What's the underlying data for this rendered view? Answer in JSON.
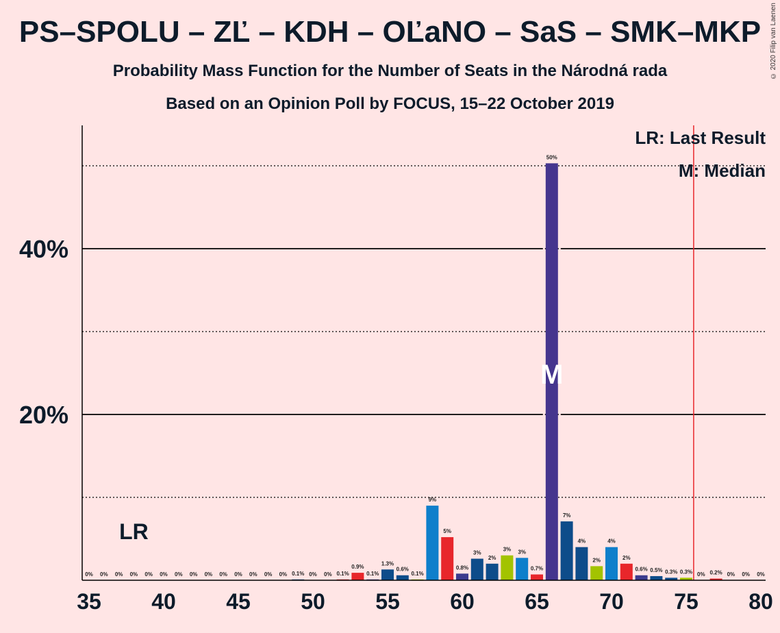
{
  "title": "PS–SPOLU – ZĽ – KDH – OĽaNO – SaS – SMK–MKP",
  "subtitle": "Probability Mass Function for the Number of Seats in the Národná rada",
  "subtitle2": "Based on an Opinion Poll by FOCUS, 15–22 October 2019",
  "copyright": "© 2020 Filip van Laenen",
  "legend": {
    "last_result": "LR: Last Result",
    "median": "M: Median"
  },
  "chart_data": {
    "type": "bar",
    "xlim": [
      35,
      80
    ],
    "ylim": [
      0,
      55
    ],
    "x_ticks": [
      35,
      40,
      45,
      50,
      55,
      60,
      65,
      70,
      75,
      80
    ],
    "y_ticks": [
      {
        "value": 20,
        "label": "20%"
      },
      {
        "value": 40,
        "label": "40%"
      }
    ],
    "y_dotted": [
      10,
      30,
      50
    ],
    "last_result_seat": 38,
    "last_result_label": "LR",
    "majority_line": 75.5,
    "median_seat": 66,
    "median_label": "M",
    "bars": [
      {
        "x": 35,
        "value": 0,
        "label": "0%",
        "color": "#1F77B4"
      },
      {
        "x": 36,
        "value": 0,
        "label": "0%",
        "color": "#E8262B"
      },
      {
        "x": 37,
        "value": 0,
        "label": "0%",
        "color": "#3C3B8E"
      },
      {
        "x": 38,
        "value": 0,
        "label": "0%",
        "color": "#0E4C8A"
      },
      {
        "x": 39,
        "value": 0,
        "label": "0%",
        "color": "#0E4C8A"
      },
      {
        "x": 40,
        "value": 0,
        "label": "0%",
        "color": "#A3C300"
      },
      {
        "x": 41,
        "value": 0,
        "label": "0%",
        "color": "#0E4C8A"
      },
      {
        "x": 42,
        "value": 0,
        "label": "0%",
        "color": "#0E4C8A"
      },
      {
        "x": 43,
        "value": 0,
        "label": "0%",
        "color": "#1F77B4"
      },
      {
        "x": 44,
        "value": 0,
        "label": "0%",
        "color": "#E8262B"
      },
      {
        "x": 45,
        "value": 0,
        "label": "0%",
        "color": "#3C3B8E"
      },
      {
        "x": 46,
        "value": 0,
        "label": "0%",
        "color": "#0E4C8A"
      },
      {
        "x": 47,
        "value": 0,
        "label": "0%",
        "color": "#0E4C8A"
      },
      {
        "x": 48,
        "value": 0,
        "label": "0%",
        "color": "#A3C300"
      },
      {
        "x": 49,
        "value": 0.1,
        "label": "0.1%",
        "color": "#0E4C8A"
      },
      {
        "x": 50,
        "value": 0,
        "label": "0%",
        "color": "#0E4C8A"
      },
      {
        "x": 51,
        "value": 0,
        "label": "0%",
        "color": "#1F77B4"
      },
      {
        "x": 52,
        "value": 0.1,
        "label": "0.1%",
        "color": "#E8262B"
      },
      {
        "x": 53,
        "value": 0.9,
        "label": "0.9%",
        "color": "#E8262B"
      },
      {
        "x": 54,
        "value": 0.1,
        "label": "0.1%",
        "color": "#3C3B8E"
      },
      {
        "x": 55,
        "value": 1.3,
        "label": "1.3%",
        "color": "#0E4C8A"
      },
      {
        "x": 56,
        "value": 0.6,
        "label": "0.6%",
        "color": "#0E4C8A"
      },
      {
        "x": 57,
        "value": 0.1,
        "label": "0.1%",
        "color": "#A3C300"
      },
      {
        "x": 58,
        "value": 9,
        "label": "9%",
        "color": "#0E7FCB"
      },
      {
        "x": 59,
        "value": 5.2,
        "label": "5%",
        "color": "#E8262B"
      },
      {
        "x": 60,
        "value": 0.8,
        "label": "0.8%",
        "color": "#3C3B8E"
      },
      {
        "x": 61,
        "value": 2.6,
        "label": "3%",
        "color": "#0E4C8A"
      },
      {
        "x": 62,
        "value": 2,
        "label": "2%",
        "color": "#0E4C8A"
      },
      {
        "x": 63,
        "value": 3,
        "label": "3%",
        "color": "#A3C300"
      },
      {
        "x": 64,
        "value": 2.7,
        "label": "3%",
        "color": "#0E7FCB"
      },
      {
        "x": 65,
        "value": 0.7,
        "label": "0.7%",
        "color": "#E8262B"
      },
      {
        "x": 66,
        "value": 50.3,
        "label": "50%",
        "color": "#45358E"
      },
      {
        "x": 67,
        "value": 7.1,
        "label": "7%",
        "color": "#0E4C8A"
      },
      {
        "x": 68,
        "value": 4,
        "label": "4%",
        "color": "#0E4C8A"
      },
      {
        "x": 69,
        "value": 1.7,
        "label": "2%",
        "color": "#A3C300"
      },
      {
        "x": 70,
        "value": 4,
        "label": "4%",
        "color": "#0E7FCB"
      },
      {
        "x": 71,
        "value": 2,
        "label": "2%",
        "color": "#E8262B"
      },
      {
        "x": 72,
        "value": 0.6,
        "label": "0.6%",
        "color": "#3C3B8E"
      },
      {
        "x": 73,
        "value": 0.5,
        "label": "0.5%",
        "color": "#0E4C8A"
      },
      {
        "x": 74,
        "value": 0.3,
        "label": "0.3%",
        "color": "#0E4C8A"
      },
      {
        "x": 75,
        "value": 0.3,
        "label": "0.3%",
        "color": "#A3C300"
      },
      {
        "x": 76,
        "value": 0,
        "label": "0%",
        "color": "#0E7FCB"
      },
      {
        "x": 77,
        "value": 0.2,
        "label": "0.2%",
        "color": "#E8262B"
      },
      {
        "x": 78,
        "value": 0,
        "label": "0%",
        "color": "#3C3B8E"
      },
      {
        "x": 79,
        "value": 0,
        "label": "0%",
        "color": "#0E4C8A"
      },
      {
        "x": 80,
        "value": 0,
        "label": "0%",
        "color": "#0E4C8A"
      }
    ]
  }
}
